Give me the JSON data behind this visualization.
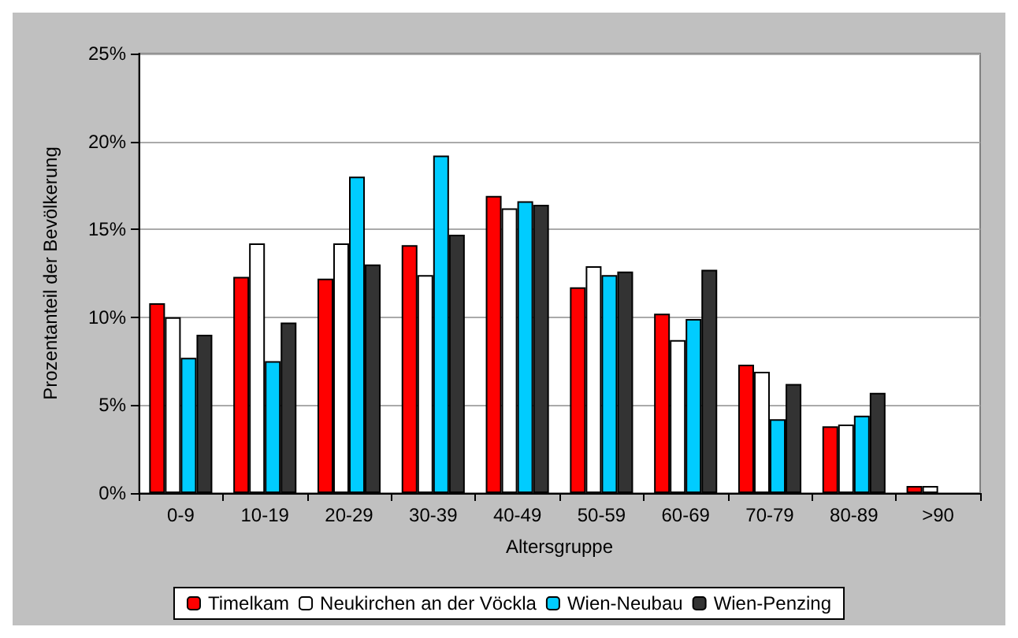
{
  "chart_data": {
    "type": "bar",
    "xlabel": "Altersgruppe",
    "ylabel": "Prozentanteil der Bevölkerung",
    "categories": [
      "0-9",
      "10-19",
      "20-29",
      "30-39",
      "40-49",
      "50-59",
      "60-69",
      "70-79",
      "80-89",
      ">90"
    ],
    "series": [
      {
        "name": "Timelkam",
        "color": "#ff0000",
        "values": [
          10.8,
          12.3,
          12.2,
          14.1,
          16.9,
          11.7,
          10.2,
          7.3,
          3.8,
          0.4
        ]
      },
      {
        "name": "Neukirchen an der Vöckla",
        "color": "#ffffff",
        "values": [
          10.0,
          14.2,
          14.2,
          12.4,
          16.2,
          12.9,
          8.7,
          6.9,
          3.9,
          0.4
        ]
      },
      {
        "name": "Wien-Neubau",
        "color": "#00ccff",
        "values": [
          7.7,
          7.5,
          18.0,
          19.2,
          16.6,
          12.4,
          9.9,
          4.2,
          4.4,
          null
        ]
      },
      {
        "name": "Wien-Penzing",
        "color": "#333333",
        "values": [
          9.0,
          9.7,
          13.0,
          14.7,
          16.4,
          12.6,
          12.7,
          6.2,
          5.7,
          null
        ]
      }
    ],
    "ylim": [
      0,
      25
    ],
    "yticks": [
      {
        "value": 0,
        "label": "0%"
      },
      {
        "value": 5,
        "label": "5%"
      },
      {
        "value": 10,
        "label": "10%"
      },
      {
        "value": 15,
        "label": "15%"
      },
      {
        "value": 20,
        "label": "20%"
      },
      {
        "value": 25,
        "label": "25%"
      }
    ],
    "grid": "y",
    "legend": "bottom"
  }
}
